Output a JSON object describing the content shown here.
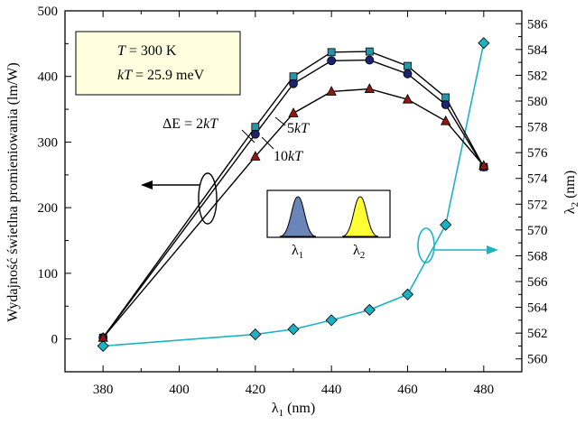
{
  "chart_data": {
    "type": "line",
    "xlabel": "λ1 (nm)",
    "ylabel_left": "Wydajność świetlna promieniowania (lm/W)",
    "ylabel_right": "λ2 (nm)",
    "xlim": [
      370,
      490
    ],
    "ylim_left": [
      -50,
      500
    ],
    "ylim_right": [
      559,
      587
    ],
    "x_ticks": [
      380,
      400,
      420,
      440,
      460,
      480
    ],
    "y_left_ticks": [
      0,
      100,
      200,
      300,
      400,
      500
    ],
    "y_right_ticks": [
      560,
      562,
      564,
      566,
      568,
      570,
      572,
      574,
      576,
      578,
      580,
      582,
      584,
      586
    ],
    "x": [
      380,
      420,
      430,
      440,
      450,
      460,
      470,
      480
    ],
    "series": [
      {
        "axis": "left",
        "marker": "square",
        "color": "#2a93a8",
        "values": [
          2,
          323,
          400,
          437,
          438,
          416,
          368,
          262
        ]
      },
      {
        "axis": "left",
        "marker": "circle",
        "color": "#1c2370",
        "values": [
          2,
          312,
          389,
          424,
          425,
          404,
          357,
          262
        ]
      },
      {
        "axis": "left",
        "marker": "triangle",
        "color": "#8c1a12",
        "values": [
          2,
          278,
          344,
          377,
          381,
          365,
          332,
          264
        ]
      },
      {
        "axis": "right",
        "marker": "diamond",
        "color": "#1bb3c3",
        "values": [
          561.0,
          561.9,
          562.3,
          563.0,
          563.8,
          565.0,
          570.4,
          584.5
        ]
      }
    ],
    "info_box": {
      "line1_var": "T",
      "line1_rest": " = 300 K",
      "line2_var": "kT",
      "line2_rest": " = 25.9 meV"
    },
    "annotations": {
      "de_prefix": "ΔE = 2",
      "kt": "kT",
      "five": "5",
      "ten": "10"
    },
    "inset": {
      "label1": "λ1",
      "label2": "λ2",
      "color1": "#6a86b8",
      "color2": "#ffff33"
    }
  }
}
